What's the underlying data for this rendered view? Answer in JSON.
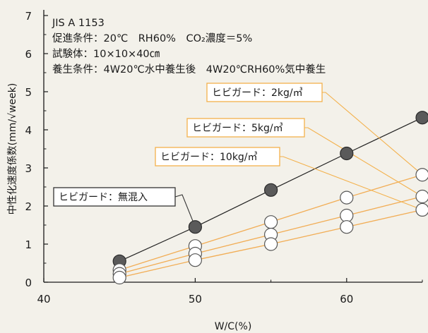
{
  "chart_data": {
    "type": "scatter",
    "xlabel": "W/C(%)",
    "ylabel": "中性化速度係数(mm/√week)",
    "xlim": [
      40,
      65
    ],
    "ylim": [
      0,
      7
    ],
    "x_ticks": [
      40,
      50,
      60
    ],
    "y_ticks": [
      0,
      1,
      2,
      3,
      4,
      5,
      6,
      7
    ],
    "grid": false,
    "conditions": [
      "JIS A 1153",
      "促進条件：20℃　RH60%　CO₂濃度＝5%",
      "試験体：10×10×40㎝",
      "養生条件：4W20℃水中養生後　4W20℃RH60%気中養生"
    ],
    "series": [
      {
        "name": "ヒビガード：無混入",
        "marker": "filled",
        "color": "#555555",
        "x": [
          45,
          50,
          55,
          60,
          65
        ],
        "y": [
          0.55,
          1.45,
          2.42,
          3.38,
          4.32
        ]
      },
      {
        "name": "ヒビガード：2kg/㎥",
        "marker": "open",
        "color": "#888888",
        "x": [
          45,
          50,
          55,
          60,
          65
        ],
        "y": [
          0.32,
          0.95,
          1.58,
          2.22,
          2.82
        ]
      },
      {
        "name": "ヒビガード：5kg/㎥",
        "marker": "open",
        "color": "#888888",
        "x": [
          45,
          50,
          55,
          60,
          65
        ],
        "y": [
          0.22,
          0.75,
          1.25,
          1.75,
          2.25
        ]
      },
      {
        "name": "ヒビガード：10kg/㎥",
        "marker": "open",
        "color": "#888888",
        "x": [
          45,
          50,
          55,
          60,
          65
        ],
        "y": [
          0.12,
          0.58,
          1.0,
          1.45,
          1.9
        ]
      }
    ],
    "colors": {
      "leader_orange": "#f3b14c",
      "leader_dark": "#333333",
      "line_orange": "#f2ad55",
      "line_dark": "#222222"
    }
  }
}
